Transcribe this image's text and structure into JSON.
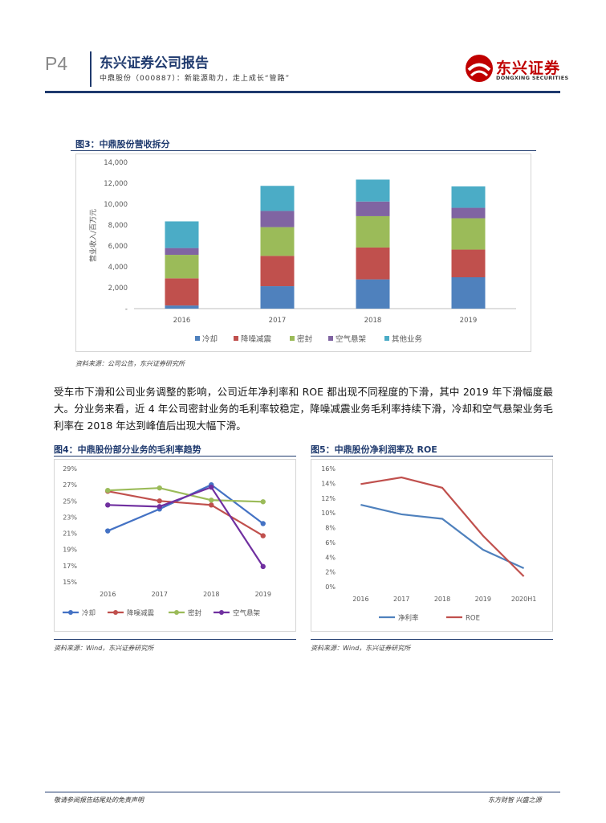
{
  "header": {
    "page_number": "P4",
    "title": "东兴证券公司报告",
    "subtitle": "中鼎股份（000887）：新能源助力，走上成长“管路”",
    "logo_cn": "东兴证券",
    "logo_en": "DONGXING SECURITIES"
  },
  "figure3": {
    "caption": "图3：中鼎股份营收拆分",
    "source": "资料来源：公司公告，东兴证券研究所"
  },
  "figure4": {
    "caption": "图4：中鼎股份部分业务的毛利率趋势",
    "source": "资料来源：Wind，东兴证券研究所"
  },
  "figure5": {
    "caption": "图5：中鼎股份净利润率及 ROE",
    "source": "资料来源：Wind，东兴证券研究所"
  },
  "body": {
    "paragraph": "受车市下滑和公司业务调整的影响，公司近年净利率和 ROE 都出现不同程度的下滑，其中 2019 年下滑幅度最大。分业务来看，近 4 年公司密封业务的毛利率较稳定，降噪减震业务毛利率持续下滑，冷却和空气悬架业务毛利率在 2018 年达到峰值后出现大幅下滑。"
  },
  "footer": {
    "left": "敬请参阅报告结尾处的免责声明",
    "right": "东方财智 兴盛之源"
  },
  "chart_data": [
    {
      "type": "bar",
      "stacked": true,
      "categories": [
        "2016",
        "2017",
        "2018",
        "2019"
      ],
      "ylabel": "营业收入/百万元",
      "ylim": [
        0,
        14000
      ],
      "yticks": [
        "-",
        "2,000",
        "4,000",
        "6,000",
        "8,000",
        "10,000",
        "12,000",
        "14,000"
      ],
      "legend_position": "bottom",
      "series": [
        {
          "name": "冷却",
          "color": "#4f81bd",
          "values": [
            300,
            2150,
            2800,
            3000
          ]
        },
        {
          "name": "降噪减震",
          "color": "#c0504d",
          "values": [
            2600,
            2900,
            3050,
            2650
          ]
        },
        {
          "name": "密封",
          "color": "#9bbb59",
          "values": [
            2250,
            2750,
            3000,
            3000
          ]
        },
        {
          "name": "空气悬架",
          "color": "#8064a2",
          "values": [
            650,
            1550,
            1400,
            1000
          ]
        },
        {
          "name": "其他业务",
          "color": "#4bacc6",
          "values": [
            2550,
            2400,
            2100,
            2050
          ]
        }
      ]
    },
    {
      "type": "line",
      "categories": [
        "2016",
        "2017",
        "2018",
        "2019"
      ],
      "ylim": [
        15,
        29
      ],
      "yticks": [
        "15%",
        "17%",
        "19%",
        "21%",
        "23%",
        "25%",
        "27%",
        "29%"
      ],
      "legend_position": "bottom",
      "series": [
        {
          "name": "冷却",
          "color": "#4472c4",
          "values": [
            21.3,
            24.0,
            27.0,
            22.2
          ]
        },
        {
          "name": "降噪减震",
          "color": "#c0504d",
          "values": [
            26.2,
            25.0,
            24.5,
            20.7
          ]
        },
        {
          "name": "密封",
          "color": "#9bbb59",
          "values": [
            26.3,
            26.6,
            25.1,
            24.9
          ]
        },
        {
          "name": "空气悬架",
          "color": "#7030a0",
          "values": [
            24.5,
            24.3,
            26.7,
            16.9
          ]
        }
      ]
    },
    {
      "type": "line",
      "categories": [
        "2016",
        "2017",
        "2018",
        "2019",
        "2020H1"
      ],
      "ylim": [
        0,
        16
      ],
      "yticks": [
        "0%",
        "2%",
        "4%",
        "6%",
        "8%",
        "10%",
        "12%",
        "14%",
        "16%"
      ],
      "legend_position": "bottom",
      "series": [
        {
          "name": "净利率",
          "color": "#4f81bd",
          "values": [
            11.1,
            9.8,
            9.2,
            5.0,
            2.5
          ]
        },
        {
          "name": "ROE",
          "color": "#c0504d",
          "values": [
            13.9,
            14.8,
            13.4,
            6.9,
            1.4
          ]
        }
      ]
    }
  ]
}
